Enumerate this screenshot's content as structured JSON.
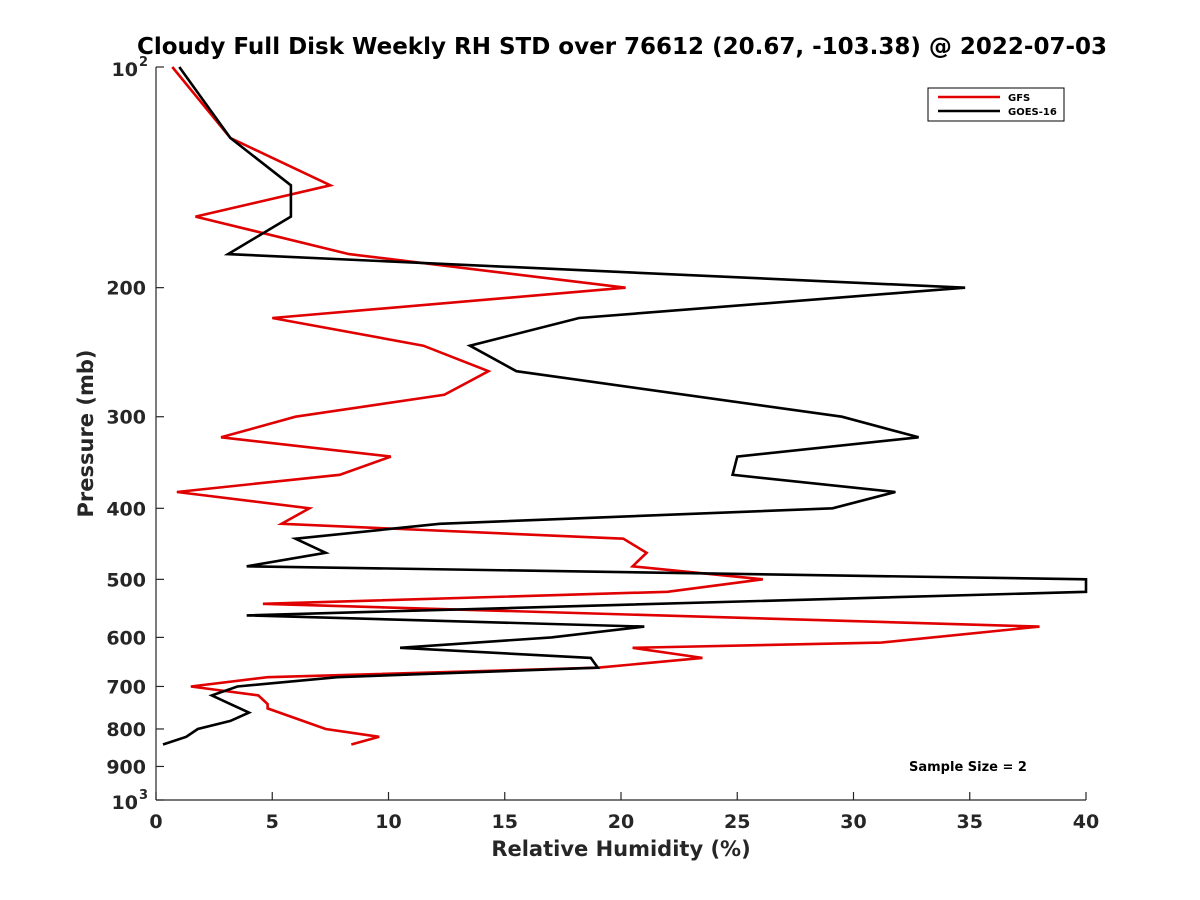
{
  "chart_data": {
    "type": "line",
    "title": "Cloudy Full Disk Weekly RH STD over 76612 (20.67, -103.38) @ 2022-07-03",
    "xlabel": "Relative Humidity (%)",
    "ylabel": "Pressure (mb)",
    "xlim": [
      0,
      40
    ],
    "ylim": [
      100,
      1000
    ],
    "yscale": "log",
    "y_reversed": true,
    "grid": false,
    "legend_position": "top-right",
    "x_ticks": [
      "0",
      "5",
      "10",
      "15",
      "20",
      "25",
      "30",
      "35",
      "40"
    ],
    "y_ticks": [
      {
        "value": 100,
        "base": "10",
        "exp": "2",
        "label": ""
      },
      {
        "value": 200,
        "label": "200"
      },
      {
        "value": 300,
        "label": "300"
      },
      {
        "value": 400,
        "label": "400"
      },
      {
        "value": 500,
        "label": "500"
      },
      {
        "value": 600,
        "label": "600"
      },
      {
        "value": 700,
        "label": "700"
      },
      {
        "value": 800,
        "label": "800"
      },
      {
        "value": 900,
        "label": "900"
      },
      {
        "value": 1000,
        "base": "10",
        "exp": "3",
        "label": ""
      }
    ],
    "series": [
      {
        "name": "GFS",
        "color": "#e00000",
        "x": [
          0.7,
          3.2,
          7.5,
          1.7,
          8.3,
          20.2,
          5.0,
          11.5,
          14.3,
          12.4,
          6.0,
          2.8,
          10.1,
          7.9,
          0.9,
          6.6,
          5.4,
          20.1,
          21.1,
          20.5,
          26.1,
          22.0,
          4.6,
          38.0,
          31.2,
          20.5,
          23.5,
          19.0,
          4.8,
          1.5,
          4.4,
          4.8,
          4.8,
          7.3,
          9.6,
          8.4
        ],
        "y": [
          100,
          125,
          145,
          160,
          180,
          200,
          220,
          240,
          260,
          280,
          300,
          320,
          340,
          360,
          380,
          400,
          420,
          440,
          460,
          480,
          500,
          520,
          540,
          580,
          610,
          620,
          640,
          660,
          680,
          700,
          720,
          740,
          750,
          800,
          820,
          840
        ]
      },
      {
        "name": "GOES-16",
        "color": "#000000",
        "x": [
          1.0,
          3.2,
          5.8,
          5.8,
          3.1,
          34.8,
          18.2,
          13.5,
          15.5,
          29.5,
          32.8,
          25.0,
          24.8,
          31.8,
          29.1,
          12.2,
          6.0,
          7.3,
          3.9,
          40.0,
          40.0,
          3.9,
          21.0,
          17.0,
          10.5,
          18.7,
          19.0,
          7.8,
          3.5,
          2.4,
          3.2,
          4.0,
          3.2,
          1.8,
          1.3,
          0.3
        ],
        "y": [
          100,
          125,
          145,
          160,
          180,
          200,
          220,
          240,
          260,
          300,
          320,
          340,
          360,
          380,
          400,
          420,
          440,
          460,
          480,
          500,
          520,
          560,
          580,
          600,
          620,
          640,
          660,
          680,
          700,
          720,
          740,
          760,
          780,
          800,
          820,
          840
        ]
      }
    ],
    "annotation": "Sample Size = 2"
  }
}
